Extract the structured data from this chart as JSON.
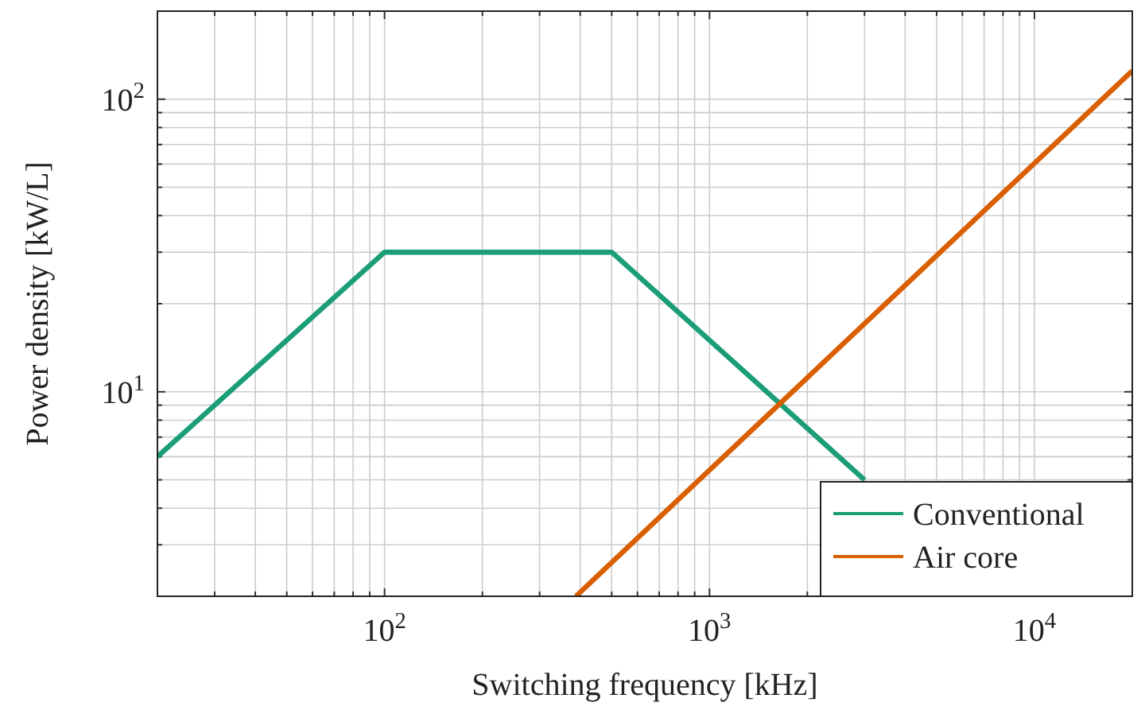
{
  "chart_data": {
    "type": "line",
    "xlabel": "Switching frequency [kHz]",
    "ylabel": "Power density [kW/L]",
    "log": "xy",
    "grid": true,
    "legend": "bottom right",
    "xlim": [
      20,
      20000
    ],
    "ylim": [
      2,
      200
    ],
    "xticks": [
      {
        "value": 20,
        "label": null
      },
      {
        "value": 30,
        "label": null
      },
      {
        "value": 40,
        "label": null
      },
      {
        "value": 50,
        "label": null
      },
      {
        "value": 60,
        "label": null
      },
      {
        "value": 70,
        "label": null
      },
      {
        "value": 80,
        "label": null
      },
      {
        "value": 90,
        "label": null
      },
      {
        "value": 100,
        "label": "10$^{2}$"
      },
      {
        "value": 200,
        "label": null
      },
      {
        "value": 300,
        "label": null
      },
      {
        "value": 400,
        "label": null
      },
      {
        "value": 500,
        "label": null
      },
      {
        "value": 600,
        "label": null
      },
      {
        "value": 700,
        "label": null
      },
      {
        "value": 800,
        "label": null
      },
      {
        "value": 900,
        "label": null
      },
      {
        "value": 1000,
        "label": "10$^{3}$"
      },
      {
        "value": 2000,
        "label": null
      },
      {
        "value": 3000,
        "label": null
      },
      {
        "value": 4000,
        "label": null
      },
      {
        "value": 5000,
        "label": null
      },
      {
        "value": 6000,
        "label": null
      },
      {
        "value": 7000,
        "label": null
      },
      {
        "value": 8000,
        "label": null
      },
      {
        "value": 9000,
        "label": null
      },
      {
        "value": 10000,
        "label": "10$^{4}$"
      },
      {
        "value": 20000,
        "label": null
      }
    ],
    "yticks": [
      {
        "value": 2,
        "label": null
      },
      {
        "value": 3,
        "label": null
      },
      {
        "value": 4,
        "label": null
      },
      {
        "value": 5,
        "label": null
      },
      {
        "value": 6,
        "label": null
      },
      {
        "value": 7,
        "label": null
      },
      {
        "value": 8,
        "label": null
      },
      {
        "value": 9,
        "label": null
      },
      {
        "value": 10,
        "label": "10$^{1}$"
      },
      {
        "value": 20,
        "label": null
      },
      {
        "value": 30,
        "label": null
      },
      {
        "value": 40,
        "label": null
      },
      {
        "value": 50,
        "label": null
      },
      {
        "value": 60,
        "label": null
      },
      {
        "value": 70,
        "label": null
      },
      {
        "value": 80,
        "label": null
      },
      {
        "value": 90,
        "label": null
      },
      {
        "value": 100,
        "label": "10$^{2}$"
      },
      {
        "value": 200,
        "label": null
      }
    ],
    "series": [
      {
        "name": "Conventional",
        "color": "#1b9e77",
        "x": [
          20,
          100,
          500,
          3000
        ],
        "values": [
          6,
          30,
          30,
          5
        ]
      },
      {
        "name": "Air core",
        "color": "#d95f02",
        "x": [
          388,
          20000
        ],
        "values": [
          2,
          125
        ]
      }
    ]
  }
}
